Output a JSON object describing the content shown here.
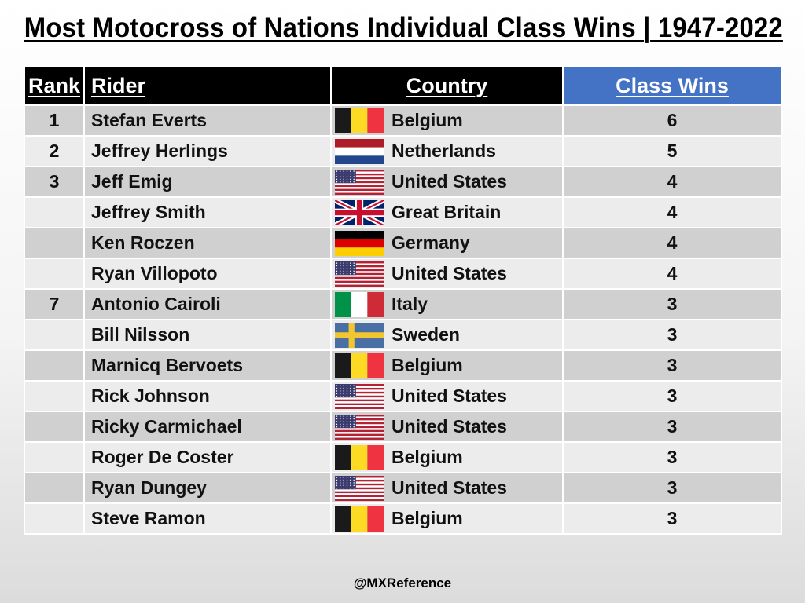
{
  "title": "Most Motocross of Nations Individual Class Wins | 1947-2022",
  "headers": {
    "rank": "Rank",
    "rider": "Rider",
    "country": "Country",
    "wins": "Class Wins"
  },
  "colors": {
    "header_bg": "#000000",
    "wins_header_bg": "#4472c4",
    "row_dark": "#d0d0d0",
    "row_light": "#ececec"
  },
  "credit": "@MXReference",
  "chart_data": {
    "type": "table",
    "title": "Most Motocross of Nations Individual Class Wins | 1947-2022",
    "columns": [
      "Rank",
      "Rider",
      "Country",
      "Class Wins"
    ],
    "rows": [
      {
        "rank": "1",
        "rider": "Stefan Everts",
        "country": "Belgium",
        "flag": "belgium-flag",
        "wins": 6
      },
      {
        "rank": "2",
        "rider": "Jeffrey Herlings",
        "country": "Netherlands",
        "flag": "netherlands-flag",
        "wins": 5
      },
      {
        "rank": "3",
        "rider": "Jeff Emig",
        "country": "United States",
        "flag": "usa-flag",
        "wins": 4
      },
      {
        "rank": "",
        "rider": "Jeffrey Smith",
        "country": "Great Britain",
        "flag": "uk-flag",
        "wins": 4
      },
      {
        "rank": "",
        "rider": "Ken Roczen",
        "country": "Germany",
        "flag": "germany-flag",
        "wins": 4
      },
      {
        "rank": "",
        "rider": "Ryan Villopoto",
        "country": "United States",
        "flag": "usa-flag",
        "wins": 4
      },
      {
        "rank": "7",
        "rider": "Antonio Cairoli",
        "country": "Italy",
        "flag": "italy-flag",
        "wins": 3
      },
      {
        "rank": "",
        "rider": "Bill Nilsson",
        "country": "Sweden",
        "flag": "sweden-flag",
        "wins": 3
      },
      {
        "rank": "",
        "rider": "Marnicq Bervoets",
        "country": "Belgium",
        "flag": "belgium-flag",
        "wins": 3
      },
      {
        "rank": "",
        "rider": "Rick Johnson",
        "country": "United States",
        "flag": "usa-flag",
        "wins": 3
      },
      {
        "rank": "",
        "rider": "Ricky Carmichael",
        "country": "United States",
        "flag": "usa-flag",
        "wins": 3
      },
      {
        "rank": "",
        "rider": "Roger De Coster",
        "country": "Belgium",
        "flag": "belgium-flag",
        "wins": 3
      },
      {
        "rank": "",
        "rider": "Ryan Dungey",
        "country": "United States",
        "flag": "usa-flag",
        "wins": 3
      },
      {
        "rank": "",
        "rider": "Steve Ramon",
        "country": "Belgium",
        "flag": "belgium-flag",
        "wins": 3
      }
    ]
  }
}
